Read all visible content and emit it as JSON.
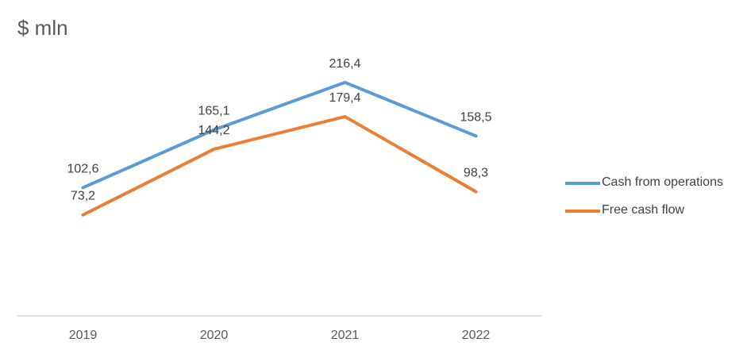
{
  "chart_data": {
    "type": "line",
    "title": "$ mln",
    "xlabel": "",
    "ylabel": "",
    "categories": [
      "2019",
      "2020",
      "2021",
      "2022"
    ],
    "series": [
      {
        "name": "Cash from operations",
        "values": [
          102.6,
          165.1,
          216.4,
          158.5
        ],
        "labels": [
          "102,6",
          "165,1",
          "216,4",
          "158,5"
        ],
        "color": "#5b9bd5"
      },
      {
        "name": "Free cash flow",
        "values": [
          73.2,
          144.2,
          179.4,
          98.3
        ],
        "labels": [
          "73,2",
          "144,2",
          "179,4",
          "98,3"
        ],
        "color": "#ed7d31"
      }
    ],
    "ylim": [
      -36,
      254
    ],
    "grid": false,
    "legend": "right"
  }
}
